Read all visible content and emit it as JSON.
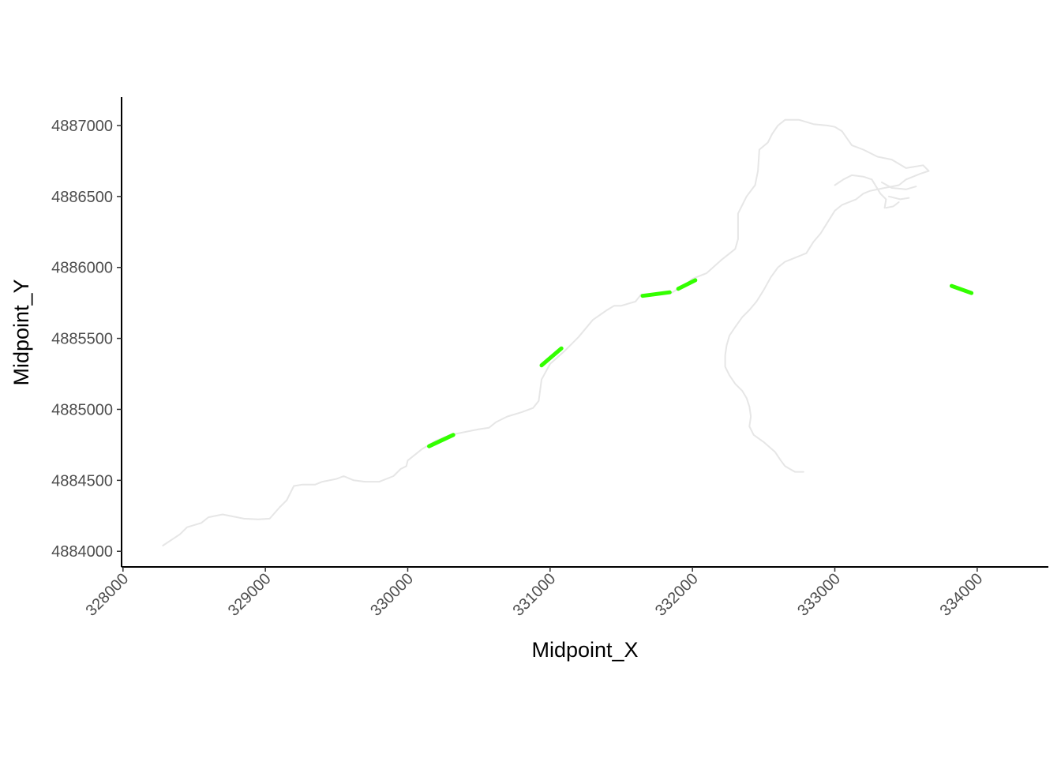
{
  "chart_data": {
    "type": "line",
    "title": "",
    "xlabel": "Midpoint_X",
    "ylabel": "Midpoint_Y",
    "xlim": [
      327990,
      334500
    ],
    "ylim": [
      4883890,
      4887200
    ],
    "x_ticks": [
      328000,
      329000,
      330000,
      331000,
      332000,
      333000,
      334000
    ],
    "x_tick_labels": [
      "328000",
      "329000",
      "330000",
      "331000",
      "332000",
      "333000",
      "334000"
    ],
    "y_ticks": [
      4884000,
      4884500,
      4885000,
      4885500,
      4886000,
      4886500,
      4887000
    ],
    "y_tick_labels": [
      "4884000",
      "4884500",
      "4885000",
      "4885500",
      "4886000",
      "4886500",
      "4887000"
    ],
    "grid": false,
    "legend": "none",
    "colors": {
      "background_line": "#e6e6e6",
      "highlight": "#33ff00",
      "axis": "#000000"
    },
    "series": [
      {
        "role": "background",
        "segments": [
          [
            [
              328280,
              4884040
            ],
            [
              328400,
              4884120
            ],
            [
              328450,
              4884170
            ],
            [
              328550,
              4884200
            ],
            [
              328600,
              4884240
            ],
            [
              328700,
              4884260
            ],
            [
              328850,
              4884230
            ],
            [
              328950,
              4884225
            ],
            [
              329030,
              4884230
            ],
            [
              329100,
              4884310
            ],
            [
              329150,
              4884360
            ],
            [
              329200,
              4884460
            ],
            [
              329260,
              4884470
            ],
            [
              329350,
              4884470
            ],
            [
              329400,
              4884490
            ],
            [
              329500,
              4884510
            ],
            [
              329550,
              4884530
            ],
            [
              329620,
              4884500
            ],
            [
              329700,
              4884490
            ],
            [
              329800,
              4884490
            ],
            [
              329900,
              4884530
            ],
            [
              329950,
              4884580
            ],
            [
              329990,
              4884600
            ],
            [
              330000,
              4884640
            ],
            [
              330100,
              4884720
            ],
            [
              330200,
              4884780
            ],
            [
              330300,
              4884820
            ],
            [
              330450,
              4884850
            ],
            [
              330500,
              4884860
            ],
            [
              330570,
              4884870
            ],
            [
              330620,
              4884910
            ],
            [
              330700,
              4884950
            ],
            [
              330800,
              4884980
            ],
            [
              330880,
              4885010
            ],
            [
              330920,
              4885060
            ],
            [
              330940,
              4885210
            ],
            [
              331000,
              4885320
            ],
            [
              331100,
              4885410
            ],
            [
              331200,
              4885510
            ],
            [
              331300,
              4885630
            ],
            [
              331400,
              4885700
            ],
            [
              331450,
              4885730
            ],
            [
              331500,
              4885730
            ],
            [
              331600,
              4885760
            ],
            [
              331640,
              4885810
            ],
            [
              331700,
              4885800
            ],
            [
              331850,
              4885820
            ],
            [
              331950,
              4885880
            ],
            [
              332000,
              4885920
            ],
            [
              332100,
              4885960
            ],
            [
              332200,
              4886050
            ],
            [
              332300,
              4886130
            ],
            [
              332320,
              4886200
            ],
            [
              332320,
              4886380
            ],
            [
              332380,
              4886500
            ],
            [
              332440,
              4886580
            ],
            [
              332460,
              4886680
            ],
            [
              332470,
              4886830
            ],
            [
              332530,
              4886880
            ],
            [
              332560,
              4886940
            ],
            [
              332600,
              4887000
            ],
            [
              332650,
              4887040
            ],
            [
              332750,
              4887040
            ],
            [
              332850,
              4887010
            ],
            [
              332950,
              4887000
            ],
            [
              333000,
              4886990
            ],
            [
              333050,
              4886960
            ],
            [
              333120,
              4886860
            ],
            [
              333200,
              4886830
            ],
            [
              333300,
              4886780
            ],
            [
              333400,
              4886760
            ],
            [
              333500,
              4886700
            ],
            [
              333620,
              4886720
            ],
            [
              333660,
              4886680
            ],
            [
              333600,
              4886660
            ],
            [
              333500,
              4886620
            ],
            [
              333450,
              4886580
            ],
            [
              333350,
              4886560
            ],
            [
              333250,
              4886540
            ],
            [
              333200,
              4886520
            ],
            [
              333150,
              4886480
            ],
            [
              333050,
              4886440
            ],
            [
              333000,
              4886400
            ],
            [
              332950,
              4886320
            ],
            [
              332900,
              4886240
            ],
            [
              332850,
              4886180
            ],
            [
              332800,
              4886100
            ],
            [
              332700,
              4886060
            ],
            [
              332650,
              4886040
            ],
            [
              332600,
              4886000
            ],
            [
              332550,
              4885930
            ],
            [
              332500,
              4885840
            ],
            [
              332450,
              4885760
            ],
            [
              332400,
              4885700
            ],
            [
              332350,
              4885650
            ],
            [
              332300,
              4885580
            ],
            [
              332260,
              4885520
            ],
            [
              332240,
              4885450
            ],
            [
              332230,
              4885380
            ],
            [
              332230,
              4885300
            ],
            [
              332260,
              4885240
            ],
            [
              332300,
              4885180
            ],
            [
              332350,
              4885130
            ],
            [
              332380,
              4885080
            ],
            [
              332400,
              4885020
            ],
            [
              332410,
              4884950
            ],
            [
              332400,
              4884880
            ],
            [
              332430,
              4884820
            ],
            [
              332500,
              4884770
            ],
            [
              332580,
              4884700
            ],
            [
              332620,
              4884640
            ],
            [
              332650,
              4884600
            ],
            [
              332720,
              4884560
            ],
            [
              332780,
              4884560
            ]
          ],
          [
            [
              333000,
              4886580
            ],
            [
              333060,
              4886620
            ],
            [
              333120,
              4886650
            ],
            [
              333200,
              4886640
            ],
            [
              333260,
              4886620
            ],
            [
              333320,
              4886520
            ],
            [
              333360,
              4886480
            ],
            [
              333350,
              4886420
            ]
          ],
          [
            [
              333330,
              4886600
            ],
            [
              333400,
              4886560
            ],
            [
              333500,
              4886550
            ],
            [
              333570,
              4886570
            ]
          ],
          [
            [
              333380,
              4886500
            ],
            [
              333460,
              4886480
            ],
            [
              333520,
              4886490
            ]
          ],
          [
            [
              333360,
              4886420
            ],
            [
              333410,
              4886430
            ],
            [
              333450,
              4886460
            ]
          ]
        ]
      },
      {
        "role": "highlight",
        "segments": [
          [
            [
              330150,
              4884740
            ],
            [
              330320,
              4884820
            ]
          ],
          [
            [
              330940,
              4885310
            ],
            [
              331080,
              4885430
            ]
          ],
          [
            [
              331650,
              4885800
            ],
            [
              331840,
              4885825
            ]
          ],
          [
            [
              331900,
              4885850
            ],
            [
              332020,
              4885910
            ]
          ],
          [
            [
              333820,
              4885870
            ],
            [
              333960,
              4885820
            ]
          ]
        ]
      }
    ]
  }
}
